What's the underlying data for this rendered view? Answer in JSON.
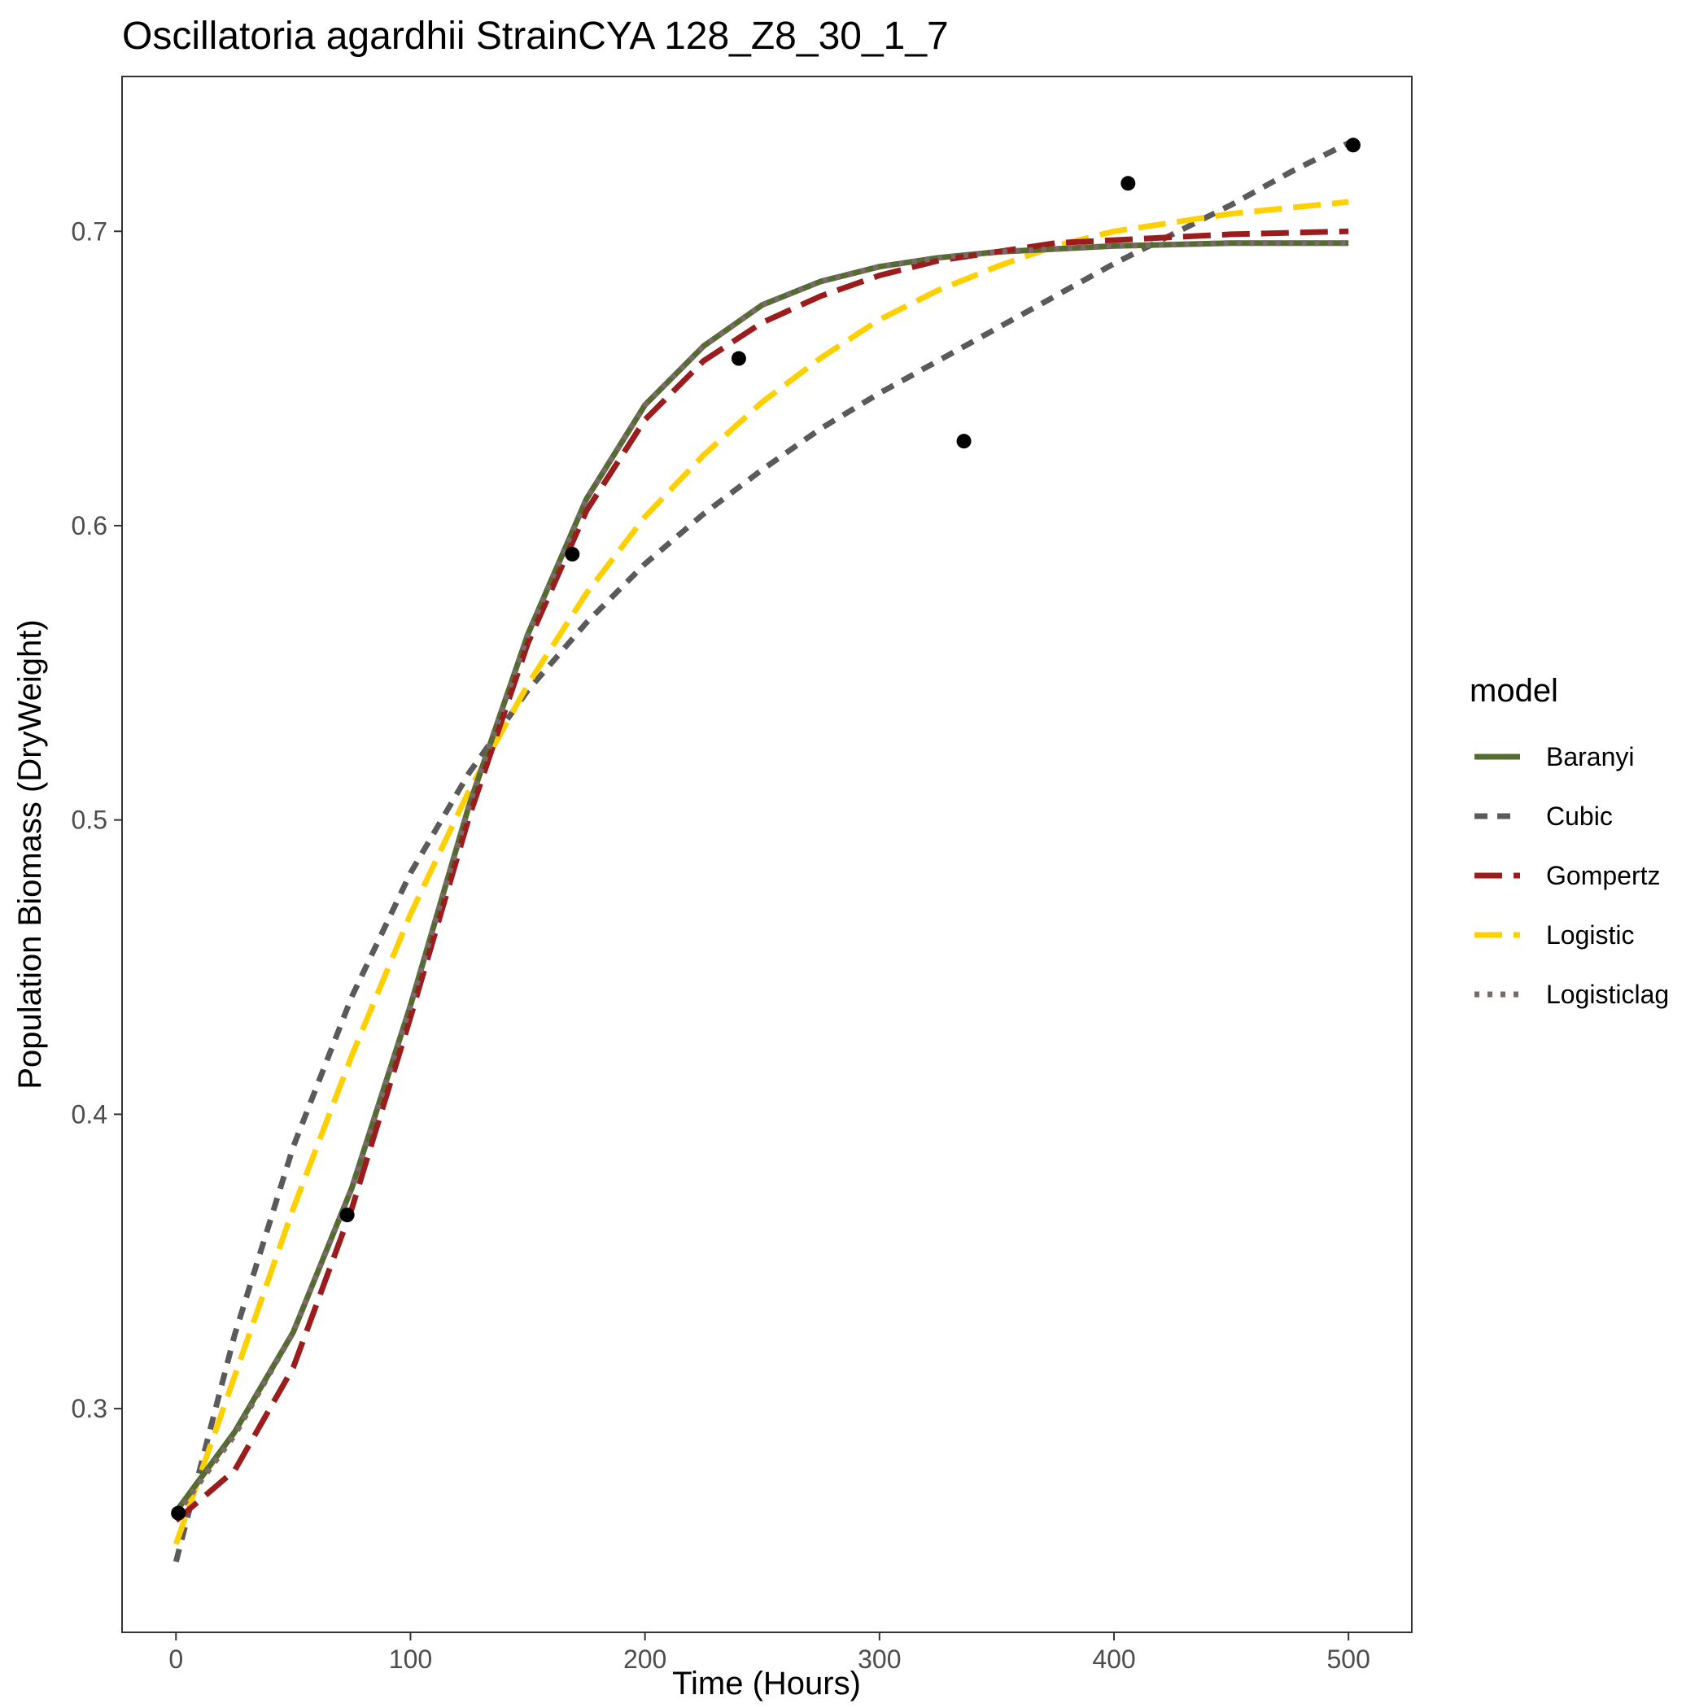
{
  "chart_data": {
    "type": "line",
    "title": "Oscillatoria agardhii StrainCYA 128_Z8_30_1_7",
    "xlabel": "Time (Hours)",
    "ylabel": "Population Biomass (DryWeight)",
    "xlim": [
      -23,
      527
    ],
    "ylim": [
      0.224,
      0.7526
    ],
    "x_ticks": [
      0,
      100,
      200,
      300,
      400,
      500
    ],
    "x_tick_labels": [
      "0",
      "100",
      "200",
      "300",
      "400",
      "500"
    ],
    "y_ticks": [
      0.3,
      0.4,
      0.5,
      0.6,
      0.7
    ],
    "y_tick_labels": [
      "0.3",
      "0.4",
      "0.5",
      "0.6",
      "0.7"
    ],
    "grid": false,
    "legend_title": "model",
    "legend_position": "right",
    "points": {
      "x": [
        1,
        73,
        169,
        240,
        336,
        406,
        502
      ],
      "y": [
        0.2645,
        0.3658,
        0.5903,
        0.6568,
        0.6287,
        0.7163,
        0.7293
      ],
      "color": "#000000"
    },
    "series": [
      {
        "name": "Baranyi",
        "color": "#556B2F",
        "dash": "solid",
        "x": [
          0,
          25,
          50,
          75,
          100,
          125,
          150,
          175,
          200,
          225,
          250,
          275,
          300,
          325,
          350,
          375,
          400,
          450,
          500
        ],
        "y": [
          0.265,
          0.292,
          0.326,
          0.375,
          0.437,
          0.505,
          0.563,
          0.609,
          0.641,
          0.661,
          0.675,
          0.683,
          0.688,
          0.691,
          0.693,
          0.694,
          0.695,
          0.696,
          0.696
        ]
      },
      {
        "name": "Cubic",
        "color": "#5a5a5a",
        "dash": "dash",
        "x": [
          0,
          25,
          50,
          75,
          100,
          125,
          150,
          175,
          200,
          225,
          250,
          275,
          300,
          325,
          350,
          375,
          400,
          425,
          450,
          475,
          500
        ],
        "y": [
          0.248,
          0.325,
          0.389,
          0.44,
          0.482,
          0.516,
          0.544,
          0.567,
          0.587,
          0.604,
          0.619,
          0.633,
          0.645,
          0.656,
          0.667,
          0.678,
          0.689,
          0.699,
          0.709,
          0.72,
          0.73
        ]
      },
      {
        "name": "Gompertz",
        "color": "#9B1C1C",
        "dash": "longdash",
        "x": [
          0,
          25,
          50,
          75,
          100,
          125,
          150,
          175,
          200,
          225,
          250,
          275,
          300,
          325,
          350,
          375,
          400,
          450,
          500
        ],
        "y": [
          0.262,
          0.279,
          0.314,
          0.368,
          0.433,
          0.501,
          0.56,
          0.605,
          0.636,
          0.656,
          0.669,
          0.678,
          0.685,
          0.69,
          0.693,
          0.696,
          0.697,
          0.699,
          0.7
        ]
      },
      {
        "name": "Logistic",
        "color": "#FFD000",
        "dash": "longdash",
        "x": [
          0,
          25,
          50,
          75,
          100,
          125,
          150,
          175,
          200,
          225,
          250,
          275,
          300,
          325,
          350,
          375,
          400,
          450,
          500
        ],
        "y": [
          0.254,
          0.311,
          0.368,
          0.42,
          0.468,
          0.51,
          0.546,
          0.577,
          0.603,
          0.624,
          0.642,
          0.657,
          0.67,
          0.68,
          0.688,
          0.695,
          0.7,
          0.706,
          0.71
        ]
      },
      {
        "name": "Logisticlag",
        "color": "#7a6a6a",
        "dash": "dotted",
        "x": [
          0,
          25,
          50,
          75,
          100,
          125,
          150,
          175,
          200,
          225,
          250,
          275,
          300,
          325,
          350,
          375,
          400,
          450,
          500
        ],
        "y": [
          0.264,
          0.291,
          0.326,
          0.375,
          0.437,
          0.505,
          0.563,
          0.609,
          0.641,
          0.661,
          0.675,
          0.683,
          0.688,
          0.691,
          0.693,
          0.694,
          0.695,
          0.696,
          0.696
        ]
      }
    ]
  }
}
